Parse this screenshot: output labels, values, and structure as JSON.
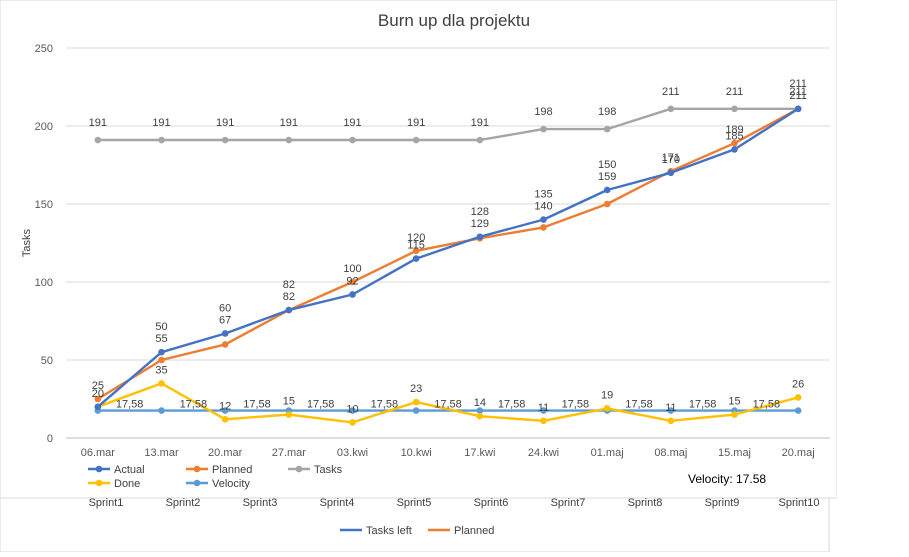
{
  "chart_data": [
    {
      "type": "line",
      "title": "Burn up dla projektu",
      "ylabel": "Tasks",
      "xlabel": "",
      "ylim": [
        0,
        250
      ],
      "yticks": [
        0,
        50,
        100,
        150,
        200,
        250
      ],
      "grid": true,
      "legend": "bottom-left",
      "categories": [
        "06.mar",
        "13.mar",
        "20.mar",
        "27.mar",
        "03.kwi",
        "10.kwi",
        "17.kwi",
        "24.kwi",
        "01.maj",
        "08.maj",
        "15.maj",
        "20.maj"
      ],
      "series": [
        {
          "name": "Actual",
          "color": "#4472C4",
          "values": [
            20,
            55,
            67,
            82,
            92,
            115,
            129,
            140,
            159,
            170,
            185,
            211
          ]
        },
        {
          "name": "Planned",
          "color": "#ED7D31",
          "values": [
            25,
            50,
            60,
            82,
            100,
            120,
            128,
            135,
            150,
            171,
            189,
            211
          ]
        },
        {
          "name": "Tasks",
          "color": "#A5A5A5",
          "values": [
            191,
            191,
            191,
            191,
            191,
            191,
            191,
            198,
            198,
            211,
            211,
            211
          ]
        },
        {
          "name": "Done",
          "color": "#FFC000",
          "values": [
            20,
            35,
            12,
            15,
            10,
            23,
            14,
            11,
            19,
            11,
            15,
            26
          ]
        },
        {
          "name": "Velocity",
          "color": "#5B9BD5",
          "values": [
            17.58,
            17.58,
            17.58,
            17.58,
            17.58,
            17.58,
            17.58,
            17.58,
            17.58,
            17.58,
            17.58,
            17.58
          ]
        }
      ],
      "velocity_labels": [
        "17,58",
        "17,58",
        "17,58",
        "17,58",
        "17,58",
        "17,58",
        "17,58",
        "17,58",
        "17,58",
        "17,58",
        "17,58"
      ],
      "data_labels": {
        "Actual": [
          "20",
          "55",
          "67",
          "82",
          "92",
          "115",
          "129",
          "140",
          "159",
          "170",
          "185",
          "211"
        ],
        "Planned": [
          "25",
          "50",
          "60",
          "82",
          "100",
          "120",
          "128",
          "135",
          "150",
          "171",
          "189",
          "211"
        ],
        "Tasks": [
          "191",
          "191",
          "191",
          "191",
          "191",
          "191",
          "191",
          "198",
          "198",
          "211",
          "211",
          "211"
        ],
        "Done": [
          "",
          "35",
          "12",
          "15",
          "10",
          "23",
          "14",
          "11",
          "19",
          "11",
          "15",
          "26"
        ]
      },
      "annotation": "Velocity: 17.58"
    },
    {
      "type": "line",
      "title": "",
      "categories": [
        "Sprint1",
        "Sprint2",
        "Sprint3",
        "Sprint4",
        "Sprint5",
        "Sprint6",
        "Sprint7",
        "Sprint8",
        "Sprint9",
        "Sprint10"
      ],
      "legend": "bottom-center",
      "series": [
        {
          "name": "Tasks left",
          "color": "#4472C4"
        },
        {
          "name": "Planned",
          "color": "#ED7D31"
        }
      ]
    }
  ]
}
